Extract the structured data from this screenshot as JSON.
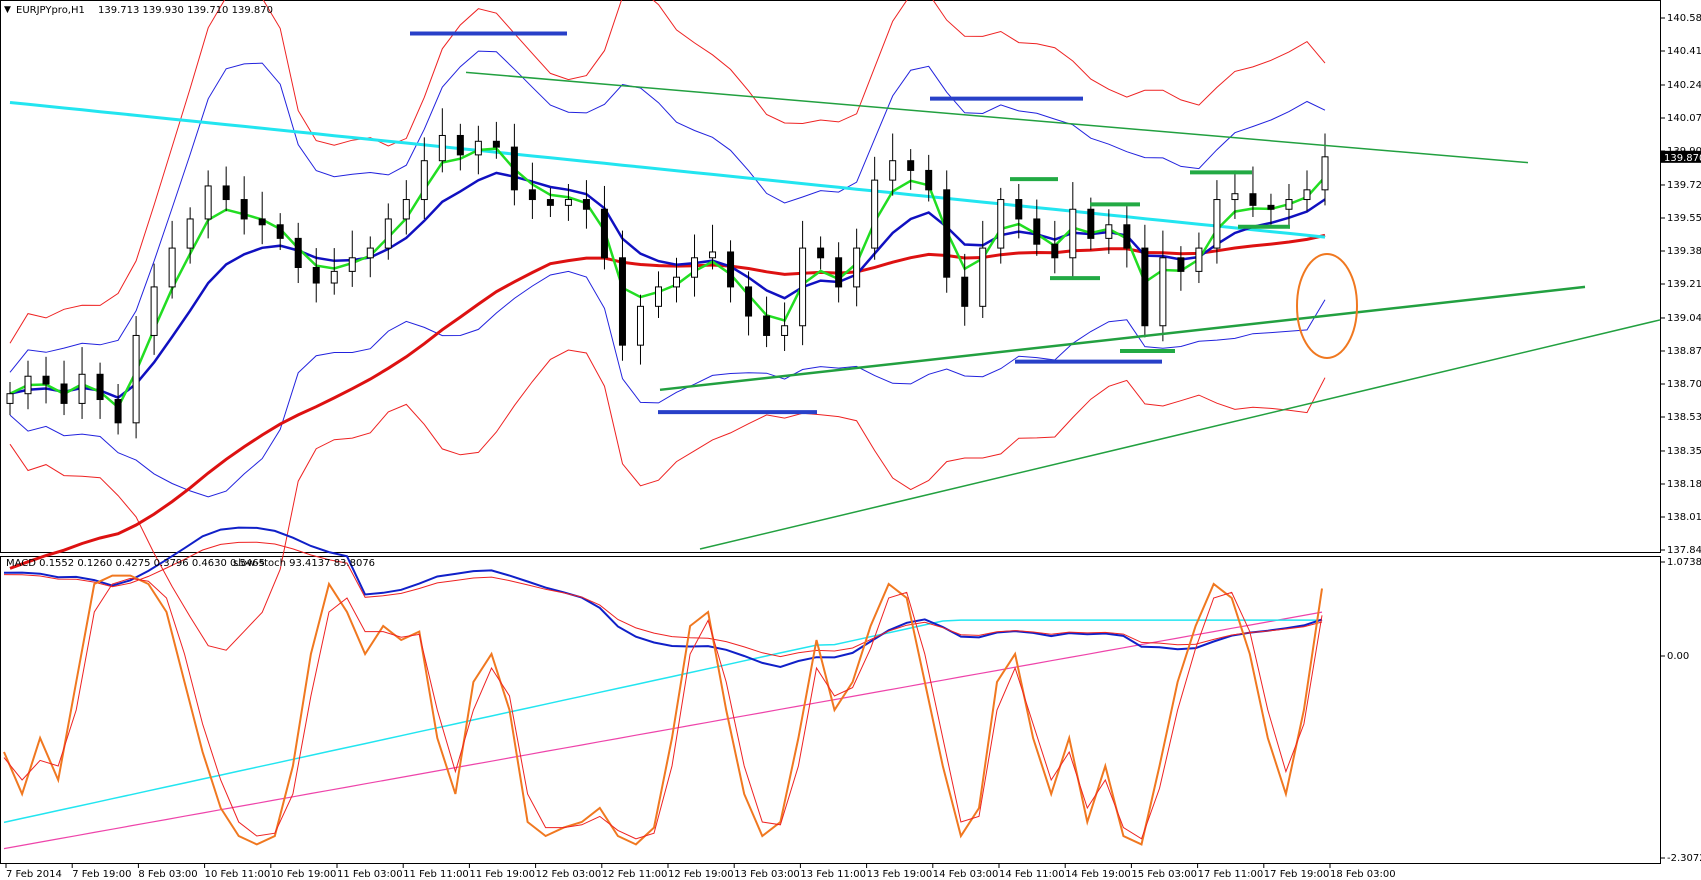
{
  "header": {
    "symbol": "EURJPYpro,H1",
    "ohlc": "139.713 139.930 139.710 139.870"
  },
  "indicator_header": {
    "macd": "MACD 0.1552 0.1260 0.4275 0.3796 0.4630 0.5465",
    "stoch": "slow-stoch 93.4137 83.8076"
  },
  "colors": {
    "up_candle": "#ffffff",
    "down_candle": "#000000",
    "ema_fast": "#22dd22",
    "ema_mid": "#1010c0",
    "ema_slow": "#dd1111",
    "sma_long": "#22e5f0",
    "bollinger_inner": "#2222dd",
    "bollinger_outer": "#ee2222",
    "trendline": "#22a040",
    "level_blue": "#2840c8",
    "level_green": "#22aa44",
    "circle": "#f07820",
    "stoch_main": "#f07820",
    "stoch_signal": "#ee2222",
    "macd_main": "#1020c8",
    "macd_signal": "#ee2222",
    "sma_pink": "#ee44aa"
  },
  "chart_data": [
    {
      "type": "candlestick",
      "panel": "price",
      "symbol": "EURJPYpro",
      "timeframe": "H1",
      "current_price": "139.870",
      "ylim": [
        137.845,
        140.585
      ],
      "y_ticks": [
        "140.585",
        "140.415",
        "140.240",
        "140.070",
        "139.900",
        "139.725",
        "139.555",
        "139.385",
        "139.215",
        "139.040",
        "138.870",
        "138.700",
        "138.530",
        "138.355",
        "138.185",
        "138.015",
        "137.845"
      ],
      "x_ticks": [
        "7 Feb 2014",
        "7 Feb 19:00",
        "8 Feb 03:00",
        "10 Feb 11:00",
        "10 Feb 19:00",
        "11 Feb 03:00",
        "11 Feb 11:00",
        "11 Feb 19:00",
        "12 Feb 03:00",
        "12 Feb 11:00",
        "12 Feb 19:00",
        "13 Feb 03:00",
        "13 Feb 11:00",
        "13 Feb 19:00",
        "14 Feb 03:00",
        "14 Feb 11:00",
        "14 Feb 19:00",
        "15 Feb 03:00",
        "17 Feb 11:00",
        "17 Feb 19:00",
        "18 Feb 03:00"
      ],
      "series": [
        {
          "role": "close",
          "values": [
            138.65,
            138.74,
            138.7,
            138.6,
            138.75,
            138.62,
            138.5,
            138.95,
            139.2,
            139.4,
            139.55,
            139.72,
            139.65,
            139.55,
            139.52,
            139.45,
            139.3,
            139.22,
            139.28,
            139.35,
            139.4,
            139.55,
            139.65,
            139.85,
            139.98,
            139.88,
            139.95,
            139.92,
            139.7,
            139.65,
            139.62,
            139.65,
            139.6,
            139.35,
            138.9,
            139.1,
            139.2,
            139.25,
            139.35,
            139.38,
            139.2,
            139.05,
            138.95,
            139.0,
            139.4,
            139.35,
            139.2,
            139.4,
            139.75,
            139.85,
            139.8,
            139.7,
            139.25,
            139.1,
            139.4,
            139.65,
            139.55,
            139.42,
            139.35,
            139.6,
            139.45,
            139.52,
            139.4,
            139.0,
            139.35,
            139.28,
            139.4,
            139.65,
            139.68,
            139.62,
            139.6,
            139.65,
            139.7,
            139.87
          ]
        }
      ]
    },
    {
      "type": "line",
      "panel": "oscillator",
      "ylim": [
        -2.3072,
        1.0738
      ],
      "y_ticks": [
        "1.0738",
        "0.00",
        "-2.3072"
      ],
      "series": [
        {
          "name": "slow-stoch",
          "values": [
            35,
            20,
            40,
            25,
            60,
            95,
            98,
            98,
            95,
            85,
            60,
            35,
            15,
            5,
            2,
            5,
            30,
            70,
            95,
            85,
            70,
            80,
            75,
            78,
            40,
            20,
            60,
            70,
            50,
            10,
            5,
            8,
            10,
            15,
            5,
            2,
            8,
            40,
            80,
            85,
            50,
            20,
            5,
            10,
            40,
            75,
            50,
            60,
            80,
            95,
            90,
            60,
            30,
            5,
            15,
            60,
            70,
            40,
            20,
            40,
            10,
            30,
            5,
            2,
            30,
            60,
            80,
            95,
            90,
            70,
            40,
            20,
            50,
            93.41
          ]
        },
        {
          "name": "signal",
          "values": [
            33,
            25,
            32,
            30,
            50,
            85,
            95,
            97,
            96,
            90,
            70,
            45,
            25,
            10,
            5,
            6,
            20,
            55,
            85,
            90,
            78,
            78,
            76,
            77,
            50,
            28,
            50,
            65,
            55,
            20,
            8,
            8,
            9,
            12,
            7,
            4,
            6,
            30,
            70,
            82,
            60,
            30,
            10,
            9,
            30,
            65,
            55,
            58,
            72,
            90,
            92,
            70,
            40,
            10,
            12,
            50,
            65,
            45,
            25,
            35,
            15,
            25,
            8,
            4,
            22,
            50,
            72,
            90,
            92,
            78,
            50,
            28,
            45,
            83.81
          ]
        }
      ]
    }
  ]
}
